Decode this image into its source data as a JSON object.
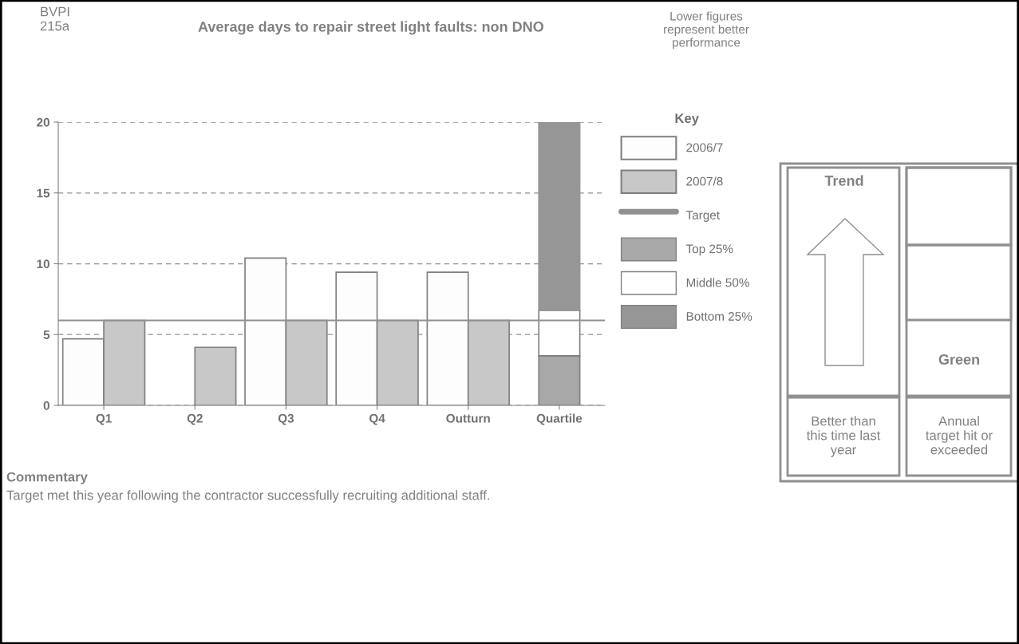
{
  "chart_data": {
    "type": "bar",
    "title": "Average days to repair street light faults: non DNO",
    "categories": [
      "Q1",
      "Q2",
      "Q3",
      "Q4",
      "Outturn",
      "Quartile"
    ],
    "series": [
      {
        "name": "2006/7",
        "color": "#fdfdfd",
        "values": [
          4.7,
          null,
          10.4,
          9.4,
          9.4,
          null
        ]
      },
      {
        "name": "2007/8",
        "color": "#c8c8c8",
        "values": [
          6.0,
          4.1,
          6.0,
          6.0,
          6.0,
          null
        ]
      },
      {
        "name": "Top 25%",
        "color": "#a8a8a8",
        "values": [
          null,
          null,
          null,
          null,
          null,
          3.5
        ],
        "base": [
          null,
          null,
          null,
          null,
          null,
          0
        ]
      },
      {
        "name": "Middle 50%",
        "color": "#ffffff",
        "values": [
          null,
          null,
          null,
          null,
          null,
          3.2
        ],
        "base": [
          null,
          null,
          null,
          null,
          null,
          3.5
        ]
      },
      {
        "name": "Bottom 25%",
        "color": "#969696",
        "values": [
          null,
          null,
          null,
          null,
          null,
          13.3
        ],
        "base": [
          null,
          null,
          null,
          null,
          null,
          6.7
        ]
      }
    ],
    "ref_lines": [
      {
        "axis": "y",
        "value": 6,
        "label": "Target",
        "color": "#909090"
      }
    ],
    "ylim": [
      0,
      20
    ],
    "yticks": [
      0,
      5,
      10,
      15,
      20
    ],
    "grid": "y",
    "legend": "right",
    "legend_title": "Key",
    "annotations": [
      "BVPI\n215a",
      "Lower figures\nrepresent better\nperformance",
      "Trend",
      "Green",
      "Better than\nthis time last\nyear",
      "Annual\ntarget hit or\nexceeded",
      "Commentary",
      "Target met this year following the contractor successfully recruiting additional staff."
    ]
  }
}
